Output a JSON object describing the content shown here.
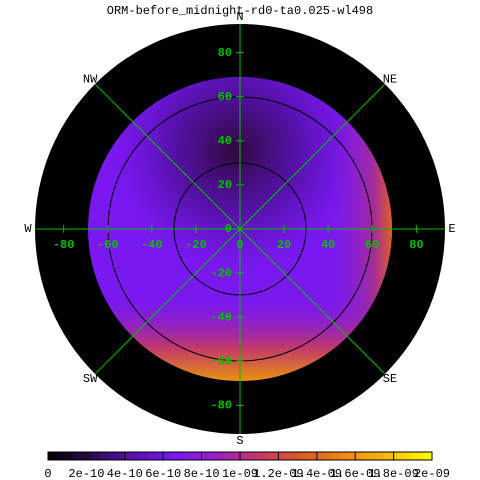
{
  "chart_data": {
    "type": "polar-heatmap",
    "title": "ORM-before_midnight-rd0-ta0.025-wl498",
    "directions": [
      {
        "label": "N",
        "angle": 90
      },
      {
        "label": "NE",
        "angle": 45
      },
      {
        "label": "E",
        "angle": 0
      },
      {
        "label": "SE",
        "angle": -45
      },
      {
        "label": "S",
        "angle": -90
      },
      {
        "label": "SW",
        "angle": -135
      },
      {
        "label": "W",
        "angle": 180
      },
      {
        "label": "NW",
        "angle": 135
      }
    ],
    "xlim": [
      -93,
      93
    ],
    "ylim": [
      -93,
      93
    ],
    "xticks": [
      -80,
      -60,
      -40,
      -20,
      0,
      20,
      40,
      60,
      80
    ],
    "yticks": [
      -80,
      -60,
      -40,
      -20,
      0,
      20,
      40,
      60,
      80
    ],
    "grid_color": "#00c000",
    "colormap": [
      "#000000",
      "#2a0a50",
      "#5a10b0",
      "#7a18f0",
      "#9c20c0",
      "#c83a60",
      "#e05a20",
      "#f08a10",
      "#f8c000",
      "#ffff00"
    ],
    "zlim": [
      0,
      2e-09
    ],
    "zticks": [
      0,
      {
        "value": 2e-10,
        "label": "2e-10"
      },
      {
        "value": 4e-10,
        "label": "4e-10"
      },
      {
        "value": 6e-10,
        "label": "6e-10"
      },
      {
        "value": 8e-10,
        "label": "8e-10"
      },
      {
        "value": 1e-09,
        "label": "1e-09"
      },
      {
        "value": 1.2e-09,
        "label": "1.2e-09"
      },
      {
        "value": 1.4e-09,
        "label": "1.4e-09"
      },
      {
        "value": 1.6e-09,
        "label": "1.6e-09"
      },
      {
        "value": 1.8e-09,
        "label": "1.8e-09"
      },
      {
        "value": 2e-09,
        "label": "2e-09"
      }
    ]
  }
}
